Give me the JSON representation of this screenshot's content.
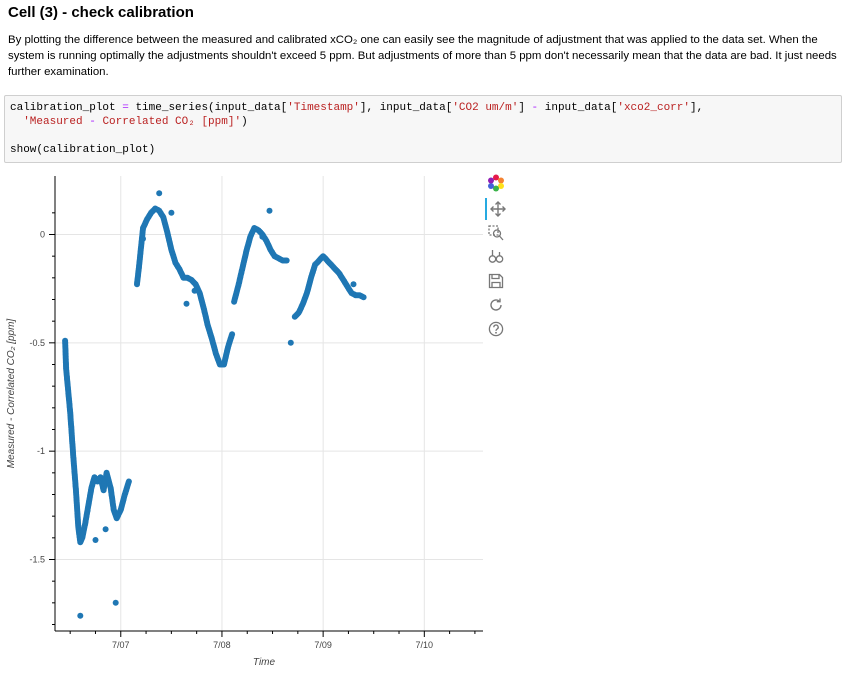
{
  "cell": {
    "title": "Cell (3) - check calibration",
    "description": "By plotting the difference between the measured and calibrated xCO₂ one can easily see the magnitude of adjustment that was applied to the data set. When the system is running optimally the adjustments shouldn't exceed 5 ppm. But adjustments of more than 5 ppm don't necessarily mean that the data are bad. It just needs further examination."
  },
  "code": {
    "line1": {
      "a": "calibration_plot",
      "b": " = ",
      "c": "time_series(input_data[",
      "d": "'Timestamp'",
      "e": "], input_data[",
      "f": "'CO2 um/m'",
      "g": "] ",
      "h": "-",
      "i": " input_data[",
      "j": "'xco2_corr'",
      "k": "],"
    },
    "line2": {
      "a": "  ",
      "b": "'Measured",
      "c": " - ",
      "d": "Correlated CO₂ [ppm]'",
      "e": ")"
    },
    "line3": "show(calibration_plot)"
  },
  "chart_data": {
    "type": "scatter",
    "title": "",
    "xlabel": "Time",
    "ylabel": "Measured - Correlated CO₂ [ppm]",
    "x_ticks": [
      "7/07",
      "7/08",
      "7/09",
      "7/10"
    ],
    "x_range": [
      6.35,
      10.58
    ],
    "y_ticks": [
      "0",
      "-0.5",
      "-1",
      "-1.5"
    ],
    "y_tick_values": [
      0,
      -0.5,
      -1,
      -1.5
    ],
    "ylim": [
      -1.83,
      0.27
    ],
    "grid": true,
    "marker_color": "#1f77b4",
    "series": [
      {
        "segments": [
          [
            [
              6.45,
              -0.49
            ],
            [
              6.46,
              -0.62
            ],
            [
              6.5,
              -0.82
            ],
            [
              6.53,
              -1.02
            ],
            [
              6.56,
              -1.2
            ],
            [
              6.58,
              -1.35
            ],
            [
              6.6,
              -1.42
            ],
            [
              6.62,
              -1.4
            ],
            [
              6.65,
              -1.33
            ],
            [
              6.68,
              -1.25
            ],
            [
              6.71,
              -1.17
            ],
            [
              6.74,
              -1.12
            ],
            [
              6.77,
              -1.14
            ],
            [
              6.8,
              -1.12
            ],
            [
              6.83,
              -1.18
            ],
            [
              6.86,
              -1.1
            ],
            [
              6.9,
              -1.17
            ],
            [
              6.93,
              -1.27
            ],
            [
              6.96,
              -1.31
            ],
            [
              7.0,
              -1.27
            ],
            [
              7.04,
              -1.2
            ],
            [
              7.08,
              -1.14
            ]
          ],
          [
            [
              7.16,
              -0.23
            ],
            [
              7.18,
              -0.15
            ],
            [
              7.2,
              -0.06
            ],
            [
              7.22,
              0.03
            ],
            [
              7.26,
              0.07
            ],
            [
              7.3,
              0.1
            ],
            [
              7.34,
              0.12
            ],
            [
              7.38,
              0.11
            ],
            [
              7.42,
              0.08
            ],
            [
              7.46,
              0.01
            ],
            [
              7.5,
              -0.07
            ],
            [
              7.54,
              -0.13
            ],
            [
              7.58,
              -0.16
            ],
            [
              7.62,
              -0.2
            ],
            [
              7.66,
              -0.2
            ],
            [
              7.7,
              -0.21
            ],
            [
              7.74,
              -0.23
            ],
            [
              7.78,
              -0.27
            ],
            [
              7.82,
              -0.34
            ],
            [
              7.86,
              -0.42
            ],
            [
              7.9,
              -0.48
            ],
            [
              7.94,
              -0.55
            ],
            [
              7.98,
              -0.6
            ],
            [
              8.02,
              -0.6
            ],
            [
              8.06,
              -0.52
            ],
            [
              8.1,
              -0.46
            ]
          ],
          [
            [
              8.12,
              -0.31
            ],
            [
              8.16,
              -0.24
            ],
            [
              8.2,
              -0.16
            ],
            [
              8.24,
              -0.08
            ],
            [
              8.28,
              -0.01
            ],
            [
              8.32,
              0.03
            ],
            [
              8.36,
              0.02
            ],
            [
              8.4,
              0.0
            ],
            [
              8.44,
              -0.03
            ],
            [
              8.48,
              -0.07
            ],
            [
              8.52,
              -0.1
            ],
            [
              8.56,
              -0.11
            ],
            [
              8.6,
              -0.12
            ],
            [
              8.64,
              -0.12
            ]
          ],
          [
            [
              8.72,
              -0.38
            ],
            [
              8.76,
              -0.36
            ],
            [
              8.8,
              -0.32
            ],
            [
              8.84,
              -0.27
            ],
            [
              8.88,
              -0.2
            ],
            [
              8.92,
              -0.14
            ],
            [
              8.96,
              -0.12
            ],
            [
              9.0,
              -0.1
            ],
            [
              9.04,
              -0.12
            ],
            [
              9.08,
              -0.14
            ],
            [
              9.12,
              -0.16
            ],
            [
              9.16,
              -0.18
            ],
            [
              9.2,
              -0.21
            ],
            [
              9.24,
              -0.24
            ],
            [
              9.28,
              -0.27
            ],
            [
              9.32,
              -0.28
            ],
            [
              9.36,
              -0.28
            ],
            [
              9.4,
              -0.29
            ]
          ]
        ],
        "outliers": [
          [
            6.6,
            -1.76
          ],
          [
            6.75,
            -1.41
          ],
          [
            6.85,
            -1.36
          ],
          [
            6.95,
            -1.7
          ],
          [
            7.22,
            -0.02
          ],
          [
            7.38,
            0.19
          ],
          [
            7.5,
            0.1
          ],
          [
            7.65,
            -0.32
          ],
          [
            7.73,
            -0.26
          ],
          [
            8.4,
            -0.01
          ],
          [
            8.47,
            0.11
          ],
          [
            8.68,
            -0.5
          ],
          [
            9.3,
            -0.23
          ]
        ]
      }
    ]
  },
  "toolbar": {
    "logo": "bokeh-logo-icon",
    "tools": [
      "pan-icon",
      "box-zoom-icon",
      "wheel-zoom-icon",
      "save-icon",
      "reset-icon",
      "help-icon"
    ]
  }
}
